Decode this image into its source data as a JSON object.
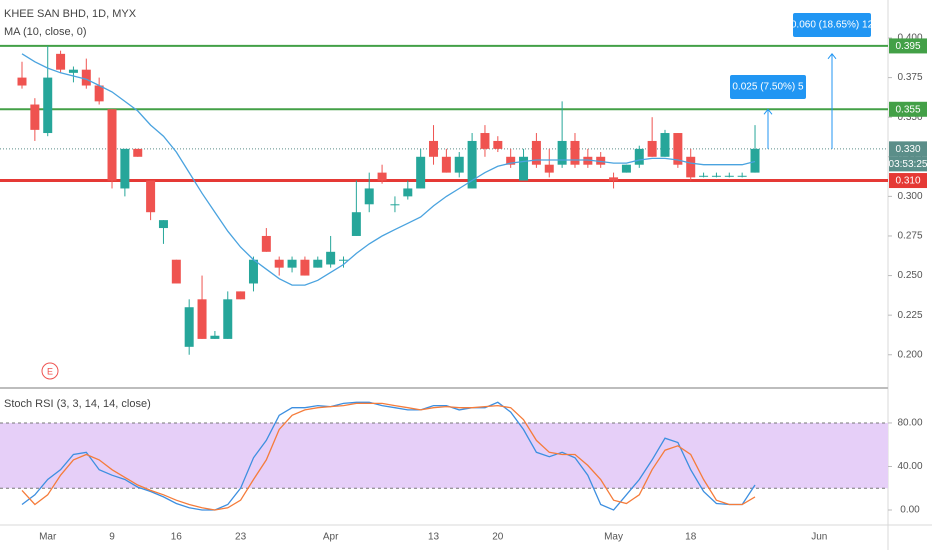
{
  "chart_data": [
    {
      "type": "candlestick",
      "title": "KHEE SAN BHD, 1D, MYX",
      "event": "E",
      "categories": [
        null,
        null,
        "Mar",
        null,
        null,
        null,
        null,
        "9",
        null,
        null,
        null,
        null,
        "16",
        null,
        null,
        null,
        null,
        "23",
        null,
        null,
        null,
        null,
        null,
        null,
        "Apr",
        null,
        null,
        null,
        null,
        null,
        null,
        null,
        "13",
        null,
        null,
        null,
        null,
        "20",
        null,
        null,
        null,
        null,
        null,
        null,
        null,
        null,
        "May",
        null,
        null,
        null,
        null,
        null,
        "18",
        null,
        null,
        null,
        null,
        null,
        null,
        null,
        null,
        null,
        "Jun",
        null,
        null,
        null,
        null
      ],
      "open": [
        0.375,
        0.358,
        0.34,
        0.39,
        0.378,
        0.38,
        0.37,
        0.355,
        0.305,
        0.33,
        0.31,
        0.28,
        0.26,
        0.205,
        0.235,
        0.21,
        0.21,
        0.24,
        0.245,
        0.275,
        0.26,
        0.255,
        0.26,
        0.255,
        0.257,
        0.26,
        0.275,
        0.295,
        0.315,
        0.295,
        0.3,
        0.305,
        0.335,
        0.325,
        0.315,
        0.305,
        0.34,
        0.335,
        0.325,
        0.31,
        0.335,
        0.32,
        0.32,
        0.335,
        0.325,
        0.325,
        0.312,
        0.315,
        0.32,
        0.335,
        0.325,
        0.34,
        0.325,
        0.313,
        0.313,
        0.313,
        0.313,
        0.315,
        null,
        null,
        null,
        null,
        null,
        null,
        null,
        null,
        null
      ],
      "high": [
        0.385,
        0.362,
        0.395,
        0.392,
        0.382,
        0.387,
        0.375,
        0.355,
        0.33,
        0.33,
        0.31,
        0.285,
        0.26,
        0.235,
        0.25,
        0.215,
        0.24,
        0.24,
        0.262,
        0.28,
        0.262,
        0.262,
        0.262,
        0.262,
        0.275,
        0.262,
        0.31,
        0.315,
        0.32,
        0.3,
        0.31,
        0.33,
        0.345,
        0.33,
        0.328,
        0.34,
        0.345,
        0.338,
        0.33,
        0.33,
        0.34,
        0.33,
        0.36,
        0.34,
        0.33,
        0.328,
        0.315,
        0.32,
        0.332,
        0.35,
        0.342,
        0.34,
        0.33,
        0.315,
        0.315,
        0.315,
        0.315,
        0.345,
        null,
        null,
        null,
        null,
        null,
        null,
        null,
        null,
        null
      ],
      "low": [
        0.368,
        0.335,
        0.338,
        0.378,
        0.372,
        0.368,
        0.358,
        0.305,
        0.3,
        0.325,
        0.285,
        0.27,
        0.245,
        0.2,
        0.21,
        0.21,
        0.21,
        0.235,
        0.24,
        0.265,
        0.25,
        0.252,
        0.25,
        0.255,
        0.255,
        0.255,
        0.275,
        0.29,
        0.308,
        0.29,
        0.298,
        0.305,
        0.32,
        0.315,
        0.312,
        0.305,
        0.325,
        0.328,
        0.318,
        0.31,
        0.318,
        0.312,
        0.318,
        0.318,
        0.318,
        0.318,
        0.305,
        0.315,
        0.318,
        0.325,
        0.325,
        0.318,
        0.31,
        0.312,
        0.312,
        0.312,
        0.312,
        0.315,
        null,
        null,
        null,
        null,
        null,
        null,
        null,
        null,
        null
      ],
      "close": [
        0.37,
        0.342,
        0.375,
        0.38,
        0.38,
        0.37,
        0.36,
        0.31,
        0.33,
        0.325,
        0.29,
        0.285,
        0.245,
        0.23,
        0.21,
        0.212,
        0.235,
        0.235,
        0.26,
        0.265,
        0.255,
        0.26,
        0.25,
        0.26,
        0.265,
        0.26,
        0.29,
        0.305,
        0.31,
        0.295,
        0.305,
        0.325,
        0.325,
        0.315,
        0.325,
        0.335,
        0.33,
        0.33,
        0.32,
        0.325,
        0.32,
        0.315,
        0.335,
        0.32,
        0.32,
        0.32,
        0.31,
        0.32,
        0.33,
        0.325,
        0.34,
        0.32,
        0.312,
        0.313,
        0.313,
        0.313,
        0.313,
        0.33,
        null,
        null,
        null,
        null,
        null,
        null,
        null,
        null,
        null
      ],
      "colors": {
        "up": "#26a69a",
        "down": "#ef5350"
      },
      "series": [
        {
          "name": "MA (10, close, 0)",
          "color": "#4aa3df",
          "values": [
            0.39,
            0.385,
            0.381,
            0.378,
            0.376,
            0.374,
            0.37,
            0.366,
            0.36,
            0.354,
            0.345,
            0.338,
            0.328,
            0.315,
            0.302,
            0.29,
            0.278,
            0.268,
            0.26,
            0.254,
            0.248,
            0.244,
            0.244,
            0.247,
            0.252,
            0.257,
            0.264,
            0.27,
            0.275,
            0.279,
            0.283,
            0.287,
            0.294,
            0.3,
            0.305,
            0.31,
            0.315,
            0.319,
            0.321,
            0.322,
            0.323,
            0.323,
            0.323,
            0.323,
            0.323,
            0.322,
            0.321,
            0.321,
            0.323,
            0.324,
            0.324,
            0.323,
            0.321,
            0.32,
            0.32,
            0.32,
            0.32,
            0.322,
            null,
            null,
            null,
            null,
            null,
            null,
            null,
            null,
            null
          ]
        }
      ],
      "ylim": [
        0.179,
        0.424
      ],
      "yticks": [
        {
          "value": 0.2,
          "label": "0.200"
        },
        {
          "value": 0.225,
          "label": "0.225"
        },
        {
          "value": 0.25,
          "label": "0.250"
        },
        {
          "value": 0.275,
          "label": "0.275"
        },
        {
          "value": 0.3,
          "label": "0.300"
        },
        {
          "value": 0.325,
          "label": "0.325"
        },
        {
          "value": 0.35,
          "label": "0.350"
        },
        {
          "value": 0.375,
          "label": "0.375"
        },
        {
          "value": 0.4,
          "label": "0.400"
        }
      ],
      "levels": [
        {
          "value": 0.395,
          "label": "0.395",
          "color": "#43a047"
        },
        {
          "value": 0.355,
          "label": "0.355",
          "color": "#43a047"
        },
        {
          "value": 0.31,
          "label": "0.310",
          "color": "#e53935"
        }
      ],
      "last_price": {
        "value": 0.33,
        "label": "0.330",
        "countdown": "03:53:25",
        "color": "#5b8e89"
      },
      "annotations": [
        {
          "label": "0.060 (18.65%) 12",
          "change": 0.06
        },
        {
          "label": "0.025 (7.50%) 5",
          "change": 0.025
        }
      ]
    },
    {
      "type": "line",
      "title": "Stoch RSI (3, 3, 14, 14, close)",
      "series": [
        {
          "color": "#3d8fe0",
          "values": [
            5,
            14,
            28,
            37,
            51,
            53,
            37,
            32,
            28,
            21,
            17,
            12,
            6,
            2,
            0,
            0,
            5,
            20,
            48,
            64,
            87,
            94,
            94,
            96,
            95,
            98,
            99,
            99,
            96,
            94,
            92,
            92,
            96,
            96,
            92,
            94,
            94,
            99,
            90,
            74,
            53,
            49,
            53,
            48,
            32,
            5,
            0,
            14,
            28,
            46,
            66,
            62,
            37,
            17,
            6,
            5,
            5,
            23,
            null,
            null,
            null,
            null,
            null,
            null,
            null,
            null,
            null
          ]
        },
        {
          "color": "#f57c3b",
          "values": [
            18,
            5,
            14,
            32,
            46,
            51,
            46,
            37,
            30,
            23,
            18,
            14,
            9,
            5,
            2,
            0,
            2,
            9,
            28,
            46,
            74,
            87,
            92,
            94,
            95,
            96,
            98,
            98,
            98,
            96,
            94,
            92,
            94,
            95,
            94,
            94,
            95,
            96,
            94,
            83,
            64,
            53,
            51,
            51,
            41,
            28,
            9,
            6,
            14,
            37,
            55,
            59,
            51,
            28,
            9,
            5,
            5,
            12,
            null,
            null,
            null,
            null,
            null,
            null,
            null,
            null,
            null
          ]
        }
      ],
      "ylim": [
        -13.8,
        110.3
      ],
      "yticks": [
        {
          "value": 0,
          "label": "0.00"
        },
        {
          "value": 40,
          "label": "40.00"
        },
        {
          "value": 80,
          "label": "80.00"
        }
      ],
      "band": [
        20,
        80
      ],
      "band_color": "#e6cff8"
    }
  ]
}
